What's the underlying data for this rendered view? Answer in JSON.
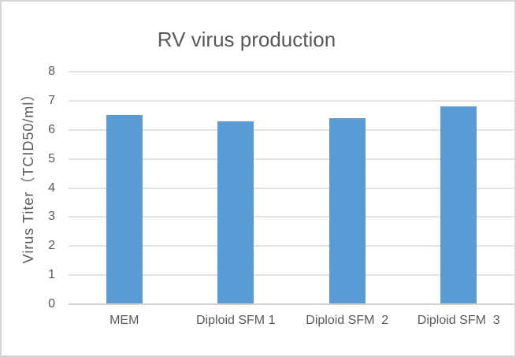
{
  "chart_data": {
    "type": "bar",
    "title": "RV virus production",
    "xlabel": "",
    "ylabel": "Virus Titer（TCID50/ml）",
    "categories": [
      "MEM",
      "Diploid SFM 1",
      "Diploid SFM  2",
      "Diploid SFM  3"
    ],
    "values": [
      6.5,
      6.3,
      6.4,
      6.8
    ],
    "ylim": [
      0,
      8
    ],
    "ytick_interval": 1,
    "yticks": [
      0,
      1,
      2,
      3,
      4,
      5,
      6,
      7,
      8
    ],
    "grid": true,
    "legend": false,
    "colors": {
      "bar": "#5b9bd5",
      "gridline": "#e2e2e2",
      "axis_line": "#d2d2d2",
      "text": "#595959",
      "frame_border": "#d6d6d6",
      "background": "#ffffff"
    }
  }
}
